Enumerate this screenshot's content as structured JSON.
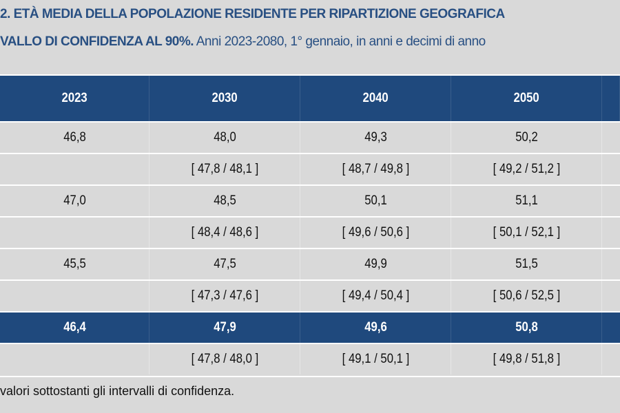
{
  "title": {
    "line1": "2. ETÀ MEDIA DELLA POPOLAZIONE RESIDENTE PER RIPARTIZIONE GEOGRAFICA",
    "line2_bold": "VALLO DI CONFIDENZA AL 90%.",
    "line2_rest": " Anni 2023-2080, 1° gennaio, in anni e decimi di anno"
  },
  "table": {
    "columns": [
      "2023",
      "2030",
      "2040",
      "2050",
      ""
    ],
    "rows": [
      {
        "value": [
          "46,8",
          "48,0",
          "49,3",
          "50,2"
        ],
        "ci": [
          "",
          "[ 47,8 / 48,1 ]",
          "[ 48,7 / 49,8 ]",
          "[ 49,2 / 51,2 ]"
        ]
      },
      {
        "value": [
          "47,0",
          "48,5",
          "50,1",
          "51,1"
        ],
        "ci": [
          "",
          "[ 48,4 / 48,6 ]",
          "[ 49,6 / 50,6 ]",
          "[ 50,1 / 52,1 ]"
        ]
      },
      {
        "value": [
          "45,5",
          "47,5",
          "49,9",
          "51,5"
        ],
        "ci": [
          "",
          "[ 47,3 / 47,6 ]",
          "[ 49,4 / 50,4 ]",
          "[ 50,6 / 52,5 ]"
        ]
      },
      {
        "value": [
          "46,4",
          "47,9",
          "49,6",
          "50,8"
        ],
        "ci": [
          "",
          "[ 47,8 / 48,0 ]",
          "[ 49,1 / 50,1 ]",
          "[ 49,8 / 51,8 ]"
        ],
        "highlight": true
      }
    ]
  },
  "footnote": "valori sottostanti gli intervalli di confidenza.",
  "colors": {
    "header": "#1f497d",
    "title": "#284f82",
    "background": "#d9d9d9"
  }
}
